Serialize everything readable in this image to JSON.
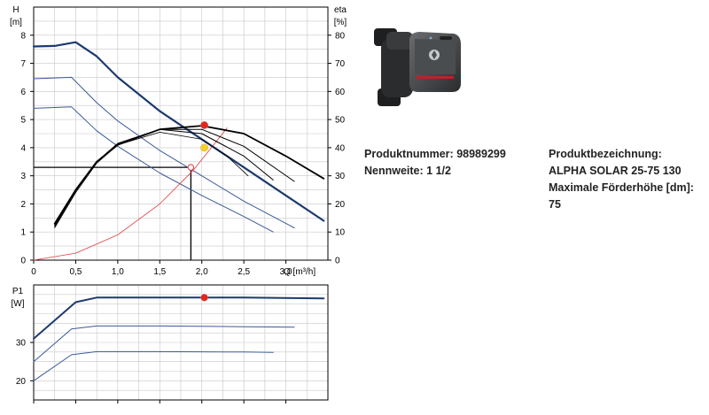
{
  "product": {
    "number_label": "Produktnummer:",
    "number": "98989299",
    "nominal_label": "Nennweite:",
    "nominal": "1 1/2",
    "designation_label": "Produktbezeichnung:",
    "designation": "ALPHA SOLAR 25-75 130",
    "max_head_label": "Maximale Förderhöhe [dm]:",
    "max_head": "75"
  },
  "chart_data": [
    {
      "type": "line",
      "axes": {
        "y_left_label": [
          "H",
          "[m]"
        ],
        "y_right_label": [
          "eta",
          "[%]"
        ],
        "x_label": "Q  [m³/h]",
        "xlim": [
          0,
          3.5
        ],
        "ylim_left": [
          0,
          9
        ],
        "ylim_right": [
          0,
          90
        ],
        "x_ticks": [
          0,
          0.5,
          1.0,
          1.5,
          2.0,
          2.5,
          3.0
        ],
        "x_tick_labels": [
          "0",
          "0,5",
          "1,0",
          "1,5",
          "2,0",
          "2,5",
          "3,0"
        ],
        "y_left_ticks": [
          0,
          1,
          2,
          3,
          4,
          5,
          6,
          7,
          8
        ],
        "y_right_ticks": [
          0,
          10,
          20,
          30,
          40,
          50,
          60,
          70,
          80
        ],
        "grid": true
      },
      "series": [
        {
          "kind": "head-max",
          "axis": "left",
          "color": "#1c3a6e",
          "width": 2.2,
          "points": [
            [
              0,
              7.6
            ],
            [
              0.25,
              7.62
            ],
            [
              0.5,
              7.75
            ],
            [
              0.75,
              7.25
            ],
            [
              1.0,
              6.5
            ],
            [
              1.5,
              5.3
            ],
            [
              2.0,
              4.3
            ],
            [
              2.5,
              3.3
            ],
            [
              3.0,
              2.3
            ],
            [
              3.45,
              1.4
            ]
          ]
        },
        {
          "kind": "head-mid",
          "axis": "left",
          "color": "#3a5a9a",
          "width": 1,
          "points": [
            [
              0,
              6.45
            ],
            [
              0.45,
              6.5
            ],
            [
              0.75,
              5.6
            ],
            [
              1.0,
              4.95
            ],
            [
              1.5,
              3.9
            ],
            [
              2.0,
              3.0
            ],
            [
              2.5,
              2.1
            ],
            [
              3.1,
              1.15
            ]
          ]
        },
        {
          "kind": "head-low",
          "axis": "left",
          "color": "#3a5a9a",
          "width": 1,
          "points": [
            [
              0,
              5.4
            ],
            [
              0.45,
              5.45
            ],
            [
              0.75,
              4.6
            ],
            [
              1.0,
              4.05
            ],
            [
              1.5,
              3.1
            ],
            [
              2.0,
              2.3
            ],
            [
              2.5,
              1.55
            ],
            [
              2.85,
              1.0
            ]
          ]
        },
        {
          "kind": "system-curve",
          "axis": "left",
          "color": "#e03a3a",
          "width": 0.8,
          "points": [
            [
              0,
              0
            ],
            [
              0.5,
              0.25
            ],
            [
              1.0,
              0.9
            ],
            [
              1.5,
              2.0
            ],
            [
              1.9,
              3.2
            ],
            [
              2.3,
              4.7
            ]
          ]
        },
        {
          "kind": "efficiency",
          "axis": "right",
          "color": "#000000",
          "width": 1.8,
          "points": [
            [
              0.25,
              13
            ],
            [
              0.5,
              25
            ],
            [
              0.75,
              35
            ],
            [
              1.0,
              41
            ],
            [
              1.5,
              46.5
            ],
            [
              2.0,
              47.8
            ],
            [
              2.5,
              45
            ],
            [
              3.0,
              37
            ],
            [
              3.45,
              29
            ]
          ]
        },
        {
          "kind": "efficiency",
          "axis": "right",
          "color": "#000000",
          "width": 1,
          "points": [
            [
              0.25,
              12.5
            ],
            [
              0.5,
              25
            ],
            [
              0.75,
              35
            ],
            [
              1.0,
              41.5
            ],
            [
              1.5,
              46.5
            ],
            [
              2.0,
              46.5
            ],
            [
              2.5,
              40.5
            ],
            [
              3.1,
              28
            ]
          ]
        },
        {
          "kind": "efficiency",
          "axis": "right",
          "color": "#000000",
          "width": 1,
          "points": [
            [
              0.25,
              12
            ],
            [
              0.5,
              24.5
            ],
            [
              0.75,
              35
            ],
            [
              1.0,
              41.5
            ],
            [
              1.5,
              46.5
            ],
            [
              2.0,
              45
            ],
            [
              2.5,
              37
            ],
            [
              2.85,
              28.5
            ]
          ]
        },
        {
          "kind": "efficiency",
          "axis": "right",
          "color": "#000000",
          "width": 0.8,
          "points": [
            [
              0.25,
              11.5
            ],
            [
              0.5,
              24
            ],
            [
              0.75,
              34.5
            ],
            [
              1.0,
              41
            ],
            [
              1.5,
              45.5
            ],
            [
              2.0,
              43
            ],
            [
              2.3,
              37
            ],
            [
              2.55,
              30
            ]
          ]
        }
      ],
      "operating_point": {
        "q": 1.87,
        "h": 3.3
      },
      "markers": [
        {
          "name": "red-point-head",
          "q": 2.03,
          "value": 4.8,
          "axis": "left",
          "color": "#e8231c"
        },
        {
          "name": "yellow-point",
          "q": 2.03,
          "value": 4.0,
          "axis": "left",
          "color": "#f8d020"
        },
        {
          "name": "operating-point-marker",
          "q": 1.87,
          "value": 3.3,
          "axis": "left",
          "color": "#e03a3a"
        }
      ]
    },
    {
      "type": "line",
      "axes": {
        "y_label": [
          "P1",
          "[W]"
        ],
        "xlim": [
          0,
          3.5
        ],
        "ylim": [
          15,
          45
        ],
        "y_ticks": [
          20,
          30
        ],
        "y_tick_labels": [
          "20",
          "30"
        ],
        "x_ticks": [
          0,
          0.5,
          1.0,
          1.5,
          2.0,
          2.5,
          3.0
        ],
        "grid": true
      },
      "series": [
        {
          "kind": "power-max",
          "color": "#1c3a6e",
          "width": 2,
          "points": [
            [
              0,
              31
            ],
            [
              0.5,
              40.5
            ],
            [
              0.75,
              41.7
            ],
            [
              1.5,
              41.7
            ],
            [
              2.5,
              41.7
            ],
            [
              3.45,
              41.5
            ]
          ]
        },
        {
          "kind": "power-mid",
          "color": "#3a5a9a",
          "width": 1,
          "points": [
            [
              0,
              25
            ],
            [
              0.45,
              33.5
            ],
            [
              0.75,
              34.3
            ],
            [
              1.5,
              34.3
            ],
            [
              2.5,
              34.1
            ],
            [
              3.1,
              34
            ]
          ]
        },
        {
          "kind": "power-low",
          "color": "#3a5a9a",
          "width": 1,
          "points": [
            [
              0,
              20
            ],
            [
              0.45,
              26.8
            ],
            [
              0.75,
              27.6
            ],
            [
              1.5,
              27.6
            ],
            [
              2.5,
              27.5
            ],
            [
              2.85,
              27.4
            ]
          ]
        }
      ],
      "markers": [
        {
          "name": "power-point",
          "q": 2.03,
          "value": 41.7,
          "color": "#e8231c"
        }
      ]
    }
  ]
}
